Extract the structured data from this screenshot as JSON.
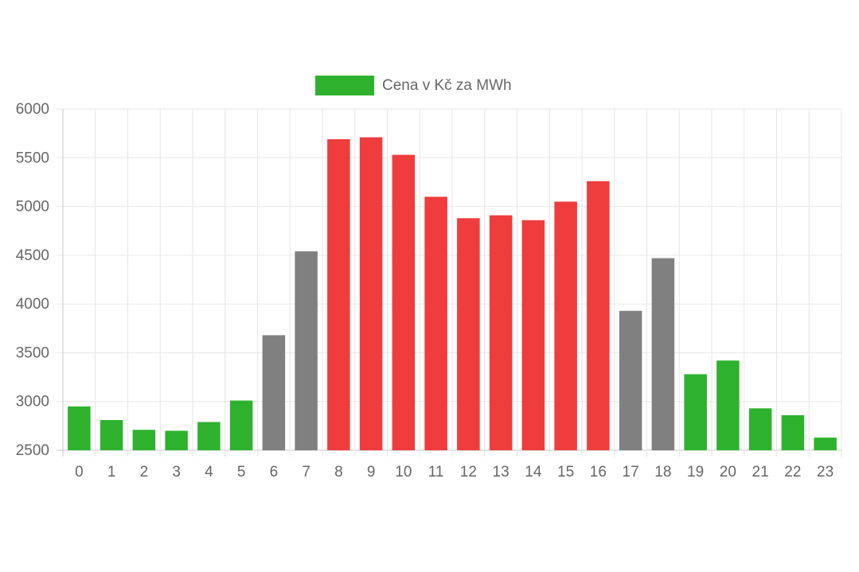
{
  "chart_data": {
    "type": "bar",
    "legend": {
      "label": "Cena v Kč za MWh",
      "color": "#2eb22e",
      "placement": "top-center"
    },
    "categories": [
      "0",
      "1",
      "2",
      "3",
      "4",
      "5",
      "6",
      "7",
      "8",
      "9",
      "10",
      "11",
      "12",
      "13",
      "14",
      "15",
      "16",
      "17",
      "18",
      "19",
      "20",
      "21",
      "22",
      "23"
    ],
    "values": [
      2950,
      2810,
      2710,
      2700,
      2790,
      3010,
      3680,
      4540,
      5690,
      5710,
      5530,
      5100,
      4880,
      4910,
      4860,
      5050,
      5260,
      3930,
      4470,
      3280,
      3420,
      2930,
      2860,
      2630
    ],
    "bar_colors": [
      "#2eb22e",
      "#2eb22e",
      "#2eb22e",
      "#2eb22e",
      "#2eb22e",
      "#2eb22e",
      "#808080",
      "#808080",
      "#ef3c3c",
      "#ef3c3c",
      "#ef3c3c",
      "#ef3c3c",
      "#ef3c3c",
      "#ef3c3c",
      "#ef3c3c",
      "#ef3c3c",
      "#ef3c3c",
      "#808080",
      "#808080",
      "#2eb22e",
      "#2eb22e",
      "#2eb22e",
      "#2eb22e",
      "#2eb22e"
    ],
    "ylim": [
      2500,
      6000
    ],
    "yticks": [
      "2500",
      "3000",
      "3500",
      "4000",
      "4500",
      "5000",
      "5500",
      "6000"
    ],
    "grid": true,
    "colors": {
      "green": "#2eb22e",
      "grey": "#808080",
      "red": "#ef3c3c"
    }
  }
}
